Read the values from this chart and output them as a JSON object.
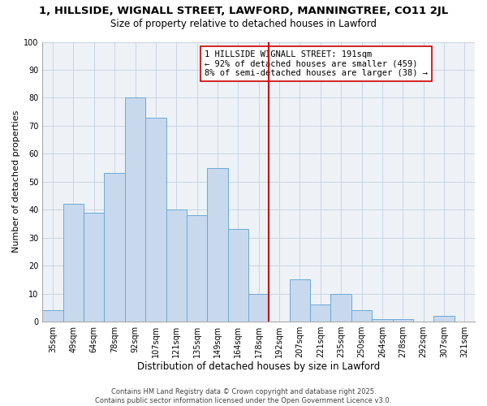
{
  "title": "1, HILLSIDE, WIGNALL STREET, LAWFORD, MANNINGTREE, CO11 2JL",
  "subtitle": "Size of property relative to detached houses in Lawford",
  "xlabel": "Distribution of detached houses by size in Lawford",
  "ylabel": "Number of detached properties",
  "bar_labels": [
    "35sqm",
    "49sqm",
    "64sqm",
    "78sqm",
    "92sqm",
    "107sqm",
    "121sqm",
    "135sqm",
    "149sqm",
    "164sqm",
    "178sqm",
    "192sqm",
    "207sqm",
    "221sqm",
    "235sqm",
    "250sqm",
    "264sqm",
    "278sqm",
    "292sqm",
    "307sqm",
    "321sqm"
  ],
  "bar_values": [
    4,
    42,
    39,
    53,
    80,
    73,
    40,
    38,
    55,
    33,
    10,
    0,
    15,
    6,
    10,
    4,
    1,
    1,
    0,
    2,
    0
  ],
  "bar_color": "#c8d9ee",
  "bar_edge_color": "#6aaad4",
  "vline_index": 11,
  "vline_color": "#cc0000",
  "annotation_line1": "1 HILLSIDE WIGNALL STREET: 191sqm",
  "annotation_line2": "← 92% of detached houses are smaller (459)",
  "annotation_line3": "8% of semi-detached houses are larger (38) →",
  "ylim": [
    0,
    100
  ],
  "yticks": [
    0,
    10,
    20,
    30,
    40,
    50,
    60,
    70,
    80,
    90,
    100
  ],
  "grid_color": "#c8d5e3",
  "background_color": "#eef2f7",
  "footer_line1": "Contains HM Land Registry data © Crown copyright and database right 2025.",
  "footer_line2": "Contains public sector information licensed under the Open Government Licence v3.0.",
  "title_fontsize": 9.5,
  "subtitle_fontsize": 8.5,
  "xlabel_fontsize": 8.5,
  "ylabel_fontsize": 8.0,
  "tick_fontsize": 7.0,
  "annotation_fontsize": 7.5,
  "footer_fontsize": 6.0
}
